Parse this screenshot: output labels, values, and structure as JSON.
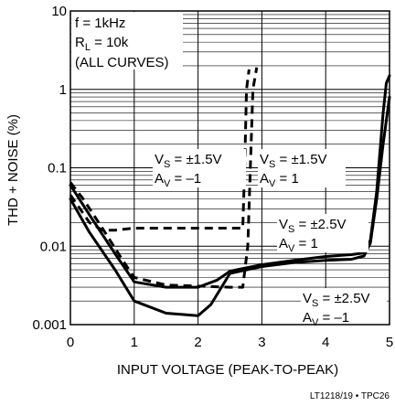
{
  "chart_data": {
    "type": "line",
    "xlabel": "INPUT VOLTAGE (PEAK-TO-PEAK)",
    "ylabel": "THD + NOISE (%)",
    "xlim": [
      0,
      5
    ],
    "ylim": [
      0.001,
      10
    ],
    "yscale": "log",
    "grid": true,
    "x_ticks": [
      "0",
      "1",
      "2",
      "3",
      "4",
      "5"
    ],
    "y_ticks": [
      {
        "value": 10,
        "label": "10"
      },
      {
        "value": 1,
        "label": "1"
      },
      {
        "value": 0.1,
        "label": "0.1"
      },
      {
        "value": 0.01,
        "label": "0.01"
      },
      {
        "value": 0.001,
        "label": "0.001"
      }
    ],
    "conditions": {
      "line1": "f = 1kHz",
      "line2_main": "R",
      "line2_sub": "L",
      "line2_rest": " = 10k",
      "line3": "(ALL CURVES)"
    },
    "series": [
      {
        "style": "dashed",
        "label_vs": "= ±1.5V",
        "label_av": "= –1",
        "points": [
          [
            0,
            0.045
          ],
          [
            0.15,
            0.03
          ],
          [
            0.3,
            0.02
          ],
          [
            0.5,
            0.016
          ],
          [
            0.7,
            0.016
          ],
          [
            1.0,
            0.017
          ],
          [
            1.5,
            0.017
          ],
          [
            2.0,
            0.017
          ],
          [
            2.5,
            0.017
          ],
          [
            2.7,
            0.017
          ],
          [
            2.73,
            0.1
          ],
          [
            2.76,
            1.0
          ],
          [
            2.8,
            1.8
          ]
        ]
      },
      {
        "style": "dashed",
        "label_vs": "= ±1.5V",
        "label_av": "= 1",
        "points": [
          [
            0,
            0.065
          ],
          [
            0.2,
            0.04
          ],
          [
            0.5,
            0.017
          ],
          [
            0.8,
            0.007
          ],
          [
            1.0,
            0.004
          ],
          [
            1.5,
            0.0032
          ],
          [
            2.0,
            0.0031
          ],
          [
            2.5,
            0.003
          ],
          [
            2.7,
            0.003
          ],
          [
            2.78,
            0.01
          ],
          [
            2.82,
            0.1
          ],
          [
            2.86,
            1.0
          ],
          [
            2.92,
            1.9
          ]
        ]
      },
      {
        "style": "solid",
        "label_vs": "= ±2.5V",
        "label_av": "= 1",
        "points": [
          [
            0,
            0.06
          ],
          [
            0.3,
            0.025
          ],
          [
            0.7,
            0.008
          ],
          [
            1.0,
            0.0035
          ],
          [
            1.5,
            0.003
          ],
          [
            2.0,
            0.003
          ],
          [
            2.3,
            0.0037
          ],
          [
            2.5,
            0.0048
          ],
          [
            3.0,
            0.0058
          ],
          [
            3.5,
            0.0066
          ],
          [
            4.0,
            0.0074
          ],
          [
            4.4,
            0.0078
          ],
          [
            4.6,
            0.0082
          ],
          [
            4.7,
            0.012
          ],
          [
            4.8,
            0.05
          ],
          [
            4.9,
            0.5
          ],
          [
            4.95,
            1.2
          ],
          [
            5.0,
            1.5
          ]
        ]
      },
      {
        "style": "solid",
        "label_vs": "= ±2.5V",
        "label_av": "= –1",
        "points": [
          [
            0,
            0.04
          ],
          [
            0.3,
            0.015
          ],
          [
            0.7,
            0.005
          ],
          [
            1.0,
            0.002
          ],
          [
            1.5,
            0.0014
          ],
          [
            2.0,
            0.0013
          ],
          [
            2.2,
            0.0018
          ],
          [
            2.5,
            0.0045
          ],
          [
            3.0,
            0.0055
          ],
          [
            3.5,
            0.0062
          ],
          [
            4.0,
            0.0066
          ],
          [
            4.4,
            0.0068
          ],
          [
            4.6,
            0.0075
          ],
          [
            4.7,
            0.011
          ],
          [
            4.8,
            0.04
          ],
          [
            4.9,
            0.2
          ],
          [
            5.0,
            0.8
          ]
        ]
      }
    ],
    "annotation_prefix_main": "V",
    "annotation_prefix_sub": "S",
    "annotation_av_main": "A",
    "annotation_av_sub": "V"
  },
  "footnote": "LT1218/19 • TPC26"
}
